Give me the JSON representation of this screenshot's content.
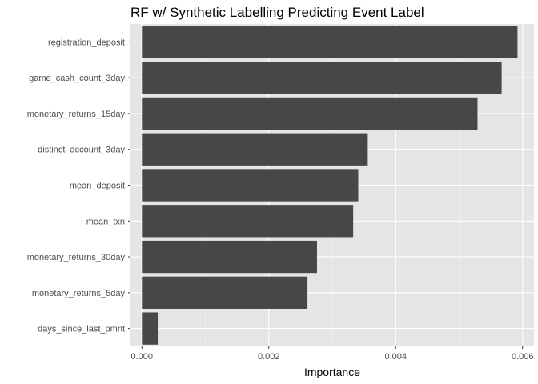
{
  "chart_data": {
    "type": "bar",
    "orientation": "horizontal",
    "title": "RF w/ Synthetic Labelling Predicting Event Label",
    "xlabel": "Importance",
    "ylabel": "",
    "categories": [
      "registration_deposit",
      "game_cash_count_3day",
      "monetary_returns_15day",
      "distinct_account_3day",
      "mean_deposit",
      "mean_txn",
      "monetary_returns_30day",
      "monetary_returns_5day",
      "days_since_last_pmnt"
    ],
    "values": [
      0.00592,
      0.00567,
      0.00529,
      0.00356,
      0.00341,
      0.00333,
      0.00276,
      0.00261,
      0.00025
    ],
    "xlim": [
      -0.00018,
      0.00618
    ],
    "x_ticks": [
      0,
      0.002,
      0.004,
      0.006
    ],
    "x_tick_labels": [
      "0.000",
      "0.002",
      "0.004",
      "0.006"
    ],
    "grid": true,
    "legend": "none",
    "colors": {
      "bar": "#474747",
      "panel": "#e5e5e5",
      "grid_major": "#ffffff",
      "grid_minor": "#f2f2f2"
    }
  }
}
